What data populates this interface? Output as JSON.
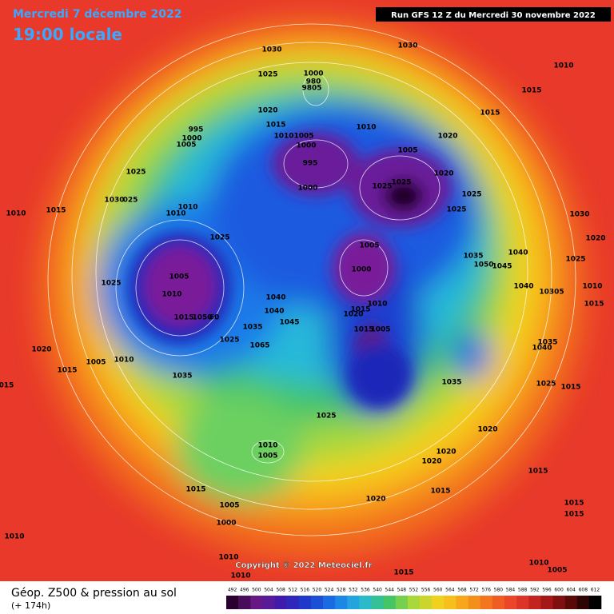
{
  "header": {
    "date": "Mercredi 7 décembre 2022",
    "time": "19:00 locale",
    "run": "Run GFS 12 Z du Mercredi 30 novembre 2022"
  },
  "copyright": "Copyright © 2022 Meteociel.fr",
  "footer": {
    "title": "Géop. Z500 & pression au sol",
    "lead": "(+ 174h)"
  },
  "scale_ticks": [
    492,
    496,
    500,
    504,
    508,
    512,
    516,
    520,
    524,
    528,
    532,
    536,
    540,
    544,
    548,
    552,
    556,
    560,
    564,
    568,
    572,
    576,
    580,
    584,
    588,
    592,
    596,
    600,
    604,
    608,
    612
  ],
  "pressure_labels": [
    "1030",
    "1030",
    "1010",
    "1025",
    "1000",
    "980",
    "9805",
    "1015",
    "1020",
    "1015",
    "1010",
    "1015",
    "995",
    "1000",
    "1005",
    "1010",
    "1005",
    "1000",
    "1005",
    "1020",
    "995",
    "1020",
    "1025",
    "1000",
    "1025",
    "1025",
    "1025",
    "1030",
    "025",
    "1010",
    "1010",
    "1015",
    "1010",
    "1025",
    "1030",
    "1020",
    "1025",
    "1005",
    "1035",
    "1040",
    "1050",
    "1045",
    "1025",
    "1025",
    "1005",
    "1000",
    "1010",
    "1040",
    "10305",
    "1010",
    "1015",
    "1040",
    "1040",
    "1015",
    "1050",
    "60",
    "1020",
    "1015",
    "1010",
    "1045",
    "1035",
    "1065",
    "1025",
    "1015",
    "1005",
    "1035",
    "1040",
    "1020",
    "1010",
    "1005",
    "1015",
    "1035",
    "1035",
    "1025",
    "1015",
    "015",
    "1025",
    "1020",
    "1010",
    "1005",
    "1020",
    "1020",
    "1015",
    "1015",
    "1015",
    "1020",
    "1005",
    "1015",
    "1015",
    "1000",
    "1010",
    "1010",
    "1010",
    "1005",
    "1010",
    "1015"
  ]
}
